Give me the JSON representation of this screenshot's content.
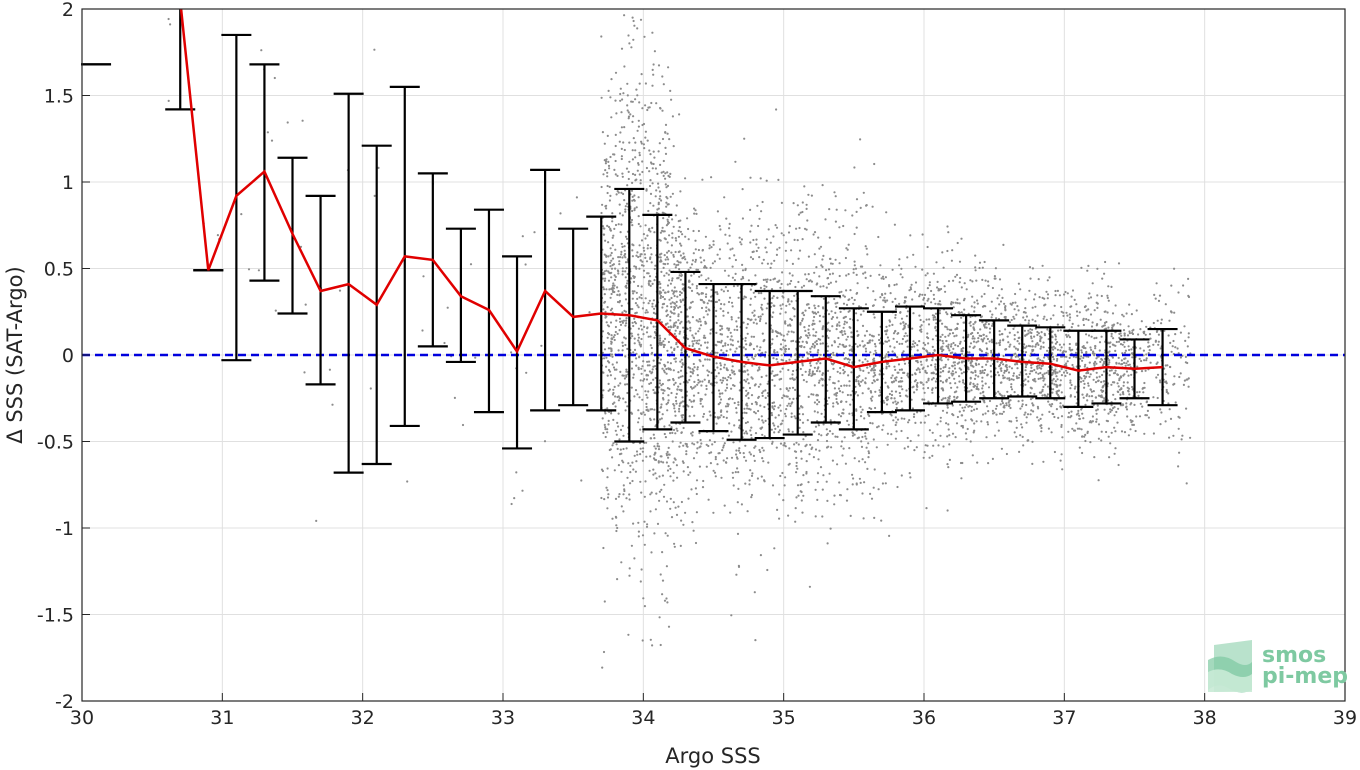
{
  "chart_data": {
    "type": "scatter",
    "xlabel": "Argo SSS",
    "ylabel": "Δ SSS (SAT-Argo)",
    "xlim": [
      30,
      39
    ],
    "ylim": [
      -2,
      2
    ],
    "x_ticks": [
      30,
      31,
      32,
      33,
      34,
      35,
      36,
      37,
      38,
      39
    ],
    "y_ticks": [
      2,
      1.5,
      1,
      0.5,
      0,
      -0.5,
      -1,
      -1.5,
      -2
    ],
    "grid": true,
    "colors": {
      "scatter": "#8c8c8c",
      "mean_line": "#e00000",
      "error_bars": "#000000",
      "zero_line": "#0000dd",
      "grid": "#e0e0e0",
      "logo": "#7ec9a1"
    },
    "zero_line": 0,
    "mean_line": {
      "x": [
        30.7,
        30.9,
        31.1,
        31.3,
        31.5,
        31.7,
        31.9,
        32.1,
        32.3,
        32.5,
        32.7,
        32.9,
        33.1,
        33.3,
        33.5,
        33.7,
        33.9,
        34.1,
        34.3,
        34.5,
        34.7,
        34.9,
        35.1,
        35.3,
        35.5,
        35.7,
        35.9,
        36.1,
        36.3,
        36.5,
        36.7,
        36.9,
        37.1,
        37.3,
        37.5,
        37.7
      ],
      "y": [
        2.05,
        0.49,
        0.92,
        1.06,
        0.7,
        0.37,
        0.41,
        0.29,
        0.57,
        0.55,
        0.34,
        0.26,
        0.02,
        0.37,
        0.22,
        0.24,
        0.23,
        0.2,
        0.04,
        -0.01,
        -0.04,
        -0.06,
        -0.04,
        -0.02,
        -0.07,
        -0.04,
        -0.02,
        0.0,
        -0.02,
        -0.02,
        -0.04,
        -0.05,
        -0.09,
        -0.07,
        -0.08,
        -0.07
      ]
    },
    "error_bars": [
      {
        "x": 30.1,
        "low": 1.68,
        "high": 1.68
      },
      {
        "x": 30.7,
        "low": 1.42,
        "high": 2.1
      },
      {
        "x": 30.9,
        "low": 0.49,
        "high": 0.49
      },
      {
        "x": 31.1,
        "low": -0.03,
        "high": 1.85
      },
      {
        "x": 31.3,
        "low": 0.43,
        "high": 1.68
      },
      {
        "x": 31.5,
        "low": 0.24,
        "high": 1.14
      },
      {
        "x": 31.7,
        "low": -0.17,
        "high": 0.92
      },
      {
        "x": 31.9,
        "low": -0.68,
        "high": 1.51
      },
      {
        "x": 32.1,
        "low": -0.63,
        "high": 1.21
      },
      {
        "x": 32.3,
        "low": -0.41,
        "high": 1.55
      },
      {
        "x": 32.5,
        "low": 0.05,
        "high": 1.05
      },
      {
        "x": 32.7,
        "low": -0.04,
        "high": 0.73
      },
      {
        "x": 32.9,
        "low": -0.33,
        "high": 0.84
      },
      {
        "x": 33.1,
        "low": -0.54,
        "high": 0.57
      },
      {
        "x": 33.3,
        "low": -0.32,
        "high": 1.07
      },
      {
        "x": 33.5,
        "low": -0.29,
        "high": 0.73
      },
      {
        "x": 33.7,
        "low": -0.32,
        "high": 0.8
      },
      {
        "x": 33.9,
        "low": -0.5,
        "high": 0.96
      },
      {
        "x": 34.1,
        "low": -0.43,
        "high": 0.81
      },
      {
        "x": 34.3,
        "low": -0.39,
        "high": 0.48
      },
      {
        "x": 34.5,
        "low": -0.44,
        "high": 0.41
      },
      {
        "x": 34.7,
        "low": -0.49,
        "high": 0.41
      },
      {
        "x": 34.9,
        "low": -0.48,
        "high": 0.37
      },
      {
        "x": 35.1,
        "low": -0.46,
        "high": 0.37
      },
      {
        "x": 35.3,
        "low": -0.39,
        "high": 0.34
      },
      {
        "x": 35.5,
        "low": -0.43,
        "high": 0.27
      },
      {
        "x": 35.7,
        "low": -0.33,
        "high": 0.25
      },
      {
        "x": 35.9,
        "low": -0.32,
        "high": 0.28
      },
      {
        "x": 36.1,
        "low": -0.28,
        "high": 0.27
      },
      {
        "x": 36.3,
        "low": -0.27,
        "high": 0.23
      },
      {
        "x": 36.5,
        "low": -0.25,
        "high": 0.2
      },
      {
        "x": 36.7,
        "low": -0.24,
        "high": 0.17
      },
      {
        "x": 36.9,
        "low": -0.25,
        "high": 0.16
      },
      {
        "x": 37.1,
        "low": -0.3,
        "high": 0.14
      },
      {
        "x": 37.3,
        "low": -0.28,
        "high": 0.14
      },
      {
        "x": 37.5,
        "low": -0.25,
        "high": 0.09
      },
      {
        "x": 37.7,
        "low": -0.29,
        "high": 0.15
      }
    ],
    "scatter_note_density": "dense cloud of grey points, concentrated between x 33.7 and 37.8"
  },
  "logo": {
    "line1": "smos",
    "line2": "pi-mep"
  }
}
